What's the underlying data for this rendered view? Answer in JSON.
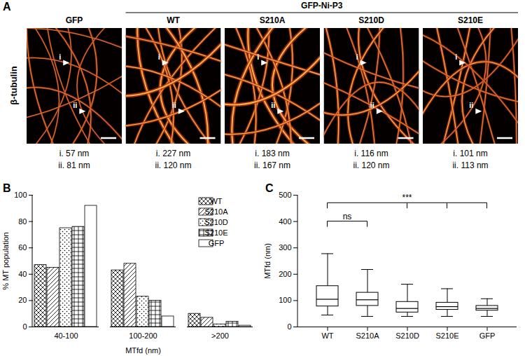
{
  "panel_a": {
    "label": "A",
    "row_label": "β-tubulin",
    "group_label": "GFP-Ni-P3",
    "group_panels": [
      "WT",
      "S210A",
      "S210D",
      "S210E"
    ],
    "marker_labels": [
      "i",
      "ii"
    ],
    "panels": [
      {
        "title": "GFP",
        "measurements": [
          "i. 57 nm",
          "ii. 81 nm"
        ]
      },
      {
        "title": "WT",
        "measurements": [
          "i. 227 nm",
          "ii. 120 nm"
        ]
      },
      {
        "title": "S210A",
        "measurements": [
          "i. 183 nm",
          "ii. 167 nm"
        ]
      },
      {
        "title": "S210D",
        "measurements": [
          "i. 116 nm",
          "ii. 120 nm"
        ]
      },
      {
        "title": "S210E",
        "measurements": [
          "i. 101 nm",
          "ii. 113 nm"
        ]
      }
    ]
  },
  "chart_data": [
    {
      "panel_label": "B",
      "type": "bar",
      "categories": [
        "40-100",
        "100-200",
        ">200"
      ],
      "x_label": "MTfd (nm)",
      "y_label": "% MT population",
      "series": [
        {
          "name": "WT",
          "values": [
            47,
            43,
            10
          ]
        },
        {
          "name": "S210A",
          "values": [
            45,
            48,
            7
          ]
        },
        {
          "name": "S210D",
          "values": [
            75,
            23,
            2
          ]
        },
        {
          "name": "S210E",
          "values": [
            76,
            20,
            4
          ]
        },
        {
          "name": "GFP",
          "values": [
            92,
            8,
            1
          ]
        }
      ],
      "ylim": [
        0,
        100
      ],
      "yticks": [
        0,
        20,
        40,
        60,
        80,
        100
      ],
      "grid": false,
      "legend": "upper right"
    },
    {
      "panel_label": "C",
      "type": "box",
      "categories": [
        "WT",
        "S210A",
        "S210D",
        "S210E",
        "GFP"
      ],
      "y_label": "MTfd (nm)",
      "whisker_low": [
        45,
        40,
        40,
        40,
        40
      ],
      "q1": [
        78,
        80,
        55,
        65,
        62
      ],
      "median": [
        105,
        103,
        70,
        77,
        70
      ],
      "q3": [
        155,
        130,
        95,
        92,
        80
      ],
      "whisker_high": [
        278,
        218,
        162,
        145,
        107
      ],
      "ylim": [
        0,
        500
      ],
      "yticks": [
        0,
        100,
        200,
        300,
        400,
        500
      ],
      "grid": false,
      "annotations": [
        {
          "text": "ns",
          "from": "WT",
          "to": [
            "S210A"
          ],
          "y": 400
        },
        {
          "text": "***",
          "from": "WT",
          "to": [
            "S210D",
            "S210E",
            "GFP"
          ],
          "y": 470
        }
      ]
    }
  ]
}
